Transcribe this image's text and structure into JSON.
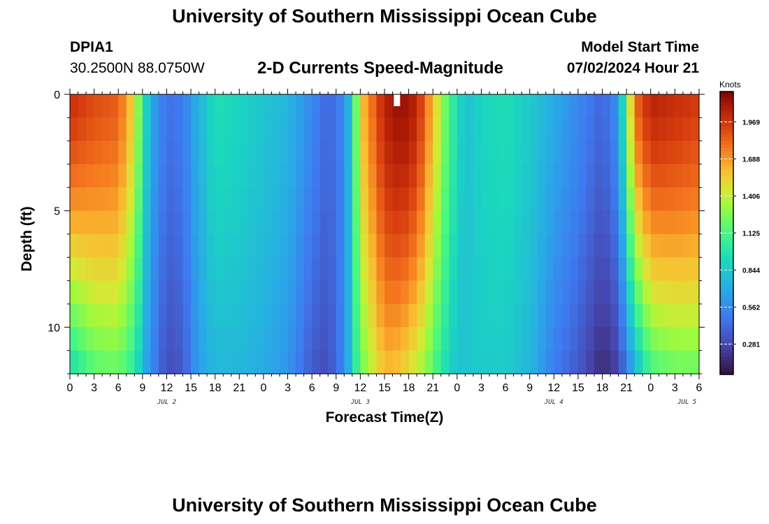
{
  "header": {
    "title": "University of Southern Mississippi Ocean Cube",
    "station_id": "DPIA1",
    "station_coords": "30.2500N  88.0750W",
    "subtitle": "2-D Currents Speed-Magnitude",
    "start_label": "Model Start Time",
    "start_value": "07/02/2024 Hour 21"
  },
  "footer": {
    "title": "University of Southern Mississippi Ocean Cube"
  },
  "chart_data": {
    "type": "heatmap",
    "title": "2-D Currents Speed-Magnitude",
    "xlabel": "Forecast Time(Z)",
    "ylabel": "Depth (ft)",
    "x_tick_labels": [
      "0",
      "3",
      "6",
      "9",
      "12",
      "15",
      "18",
      "21",
      "0",
      "3",
      "6",
      "9",
      "12",
      "15",
      "18",
      "21",
      "0",
      "3",
      "6",
      "9",
      "12",
      "15",
      "18",
      "21",
      "0",
      "3",
      "6"
    ],
    "date_labels": [
      {
        "label": "JUL 2",
        "tick_index": 4
      },
      {
        "label": "JUL 3",
        "tick_index": 12
      },
      {
        "label": "JUL 4",
        "tick_index": 20
      },
      {
        "label": "JUL 5",
        "tick_index": 25.5
      }
    ],
    "x_range_hours": [
      0,
      78
    ],
    "y_tick_labels": [
      "0",
      "5",
      "10"
    ],
    "y_range_ft": [
      0,
      12
    ],
    "colorbar": {
      "unit": "Knots",
      "ticks": [
        "1.969",
        "1.688",
        "1.406",
        "1.125",
        "0.844",
        "0.562",
        "0.281"
      ],
      "tick_values": [
        1.969,
        1.688,
        1.406,
        1.125,
        0.844,
        0.562,
        0.281
      ],
      "range": [
        0.05,
        2.2
      ]
    },
    "surface_speed_profile": [
      {
        "hour": 0,
        "value": 2.0
      },
      {
        "hour": 3,
        "value": 1.9
      },
      {
        "hour": 6,
        "value": 1.85
      },
      {
        "hour": 8,
        "value": 1.5
      },
      {
        "hour": 9,
        "value": 1.05
      },
      {
        "hour": 10,
        "value": 0.7
      },
      {
        "hour": 12,
        "value": 0.45
      },
      {
        "hour": 14,
        "value": 0.5
      },
      {
        "hour": 16,
        "value": 0.75
      },
      {
        "hour": 18,
        "value": 0.95
      },
      {
        "hour": 21,
        "value": 0.9
      },
      {
        "hour": 24,
        "value": 0.82
      },
      {
        "hour": 27,
        "value": 0.75
      },
      {
        "hour": 30,
        "value": 0.55
      },
      {
        "hour": 32,
        "value": 0.4
      },
      {
        "hour": 34,
        "value": 0.55
      },
      {
        "hour": 35,
        "value": 0.9
      },
      {
        "hour": 36,
        "value": 1.55
      },
      {
        "hour": 39,
        "value": 2.05
      },
      {
        "hour": 41,
        "value": 2.15
      },
      {
        "hour": 43,
        "value": 2.05
      },
      {
        "hour": 45,
        "value": 1.6
      },
      {
        "hour": 47,
        "value": 1.1
      },
      {
        "hour": 49,
        "value": 0.8
      },
      {
        "hour": 51,
        "value": 0.9
      },
      {
        "hour": 54,
        "value": 0.95
      },
      {
        "hour": 57,
        "value": 0.85
      },
      {
        "hour": 60,
        "value": 0.7
      },
      {
        "hour": 63,
        "value": 0.55
      },
      {
        "hour": 66,
        "value": 0.4
      },
      {
        "hour": 68,
        "value": 0.6
      },
      {
        "hour": 69,
        "value": 1.2
      },
      {
        "hour": 70,
        "value": 1.8
      },
      {
        "hour": 72,
        "value": 2.05
      },
      {
        "hour": 75,
        "value": 2.0
      },
      {
        "hour": 78,
        "value": 1.95
      }
    ],
    "bottom_speed_profile": [
      {
        "hour": 0,
        "value": 0.9
      },
      {
        "hour": 3,
        "value": 1.15
      },
      {
        "hour": 6,
        "value": 1.2
      },
      {
        "hour": 8,
        "value": 1.0
      },
      {
        "hour": 10,
        "value": 0.55
      },
      {
        "hour": 12,
        "value": 0.3
      },
      {
        "hour": 14,
        "value": 0.35
      },
      {
        "hour": 16,
        "value": 0.65
      },
      {
        "hour": 18,
        "value": 0.75
      },
      {
        "hour": 21,
        "value": 0.75
      },
      {
        "hour": 24,
        "value": 0.7
      },
      {
        "hour": 27,
        "value": 0.6
      },
      {
        "hour": 30,
        "value": 0.35
      },
      {
        "hour": 32,
        "value": 0.3
      },
      {
        "hour": 34,
        "value": 0.55
      },
      {
        "hour": 36,
        "value": 1.2
      },
      {
        "hour": 39,
        "value": 1.6
      },
      {
        "hour": 41,
        "value": 1.55
      },
      {
        "hour": 44,
        "value": 1.3
      },
      {
        "hour": 46,
        "value": 1.0
      },
      {
        "hour": 48,
        "value": 0.8
      },
      {
        "hour": 51,
        "value": 0.85
      },
      {
        "hour": 54,
        "value": 0.85
      },
      {
        "hour": 57,
        "value": 0.75
      },
      {
        "hour": 60,
        "value": 0.5
      },
      {
        "hour": 63,
        "value": 0.35
      },
      {
        "hour": 66,
        "value": 0.15
      },
      {
        "hour": 68,
        "value": 0.25
      },
      {
        "hour": 70,
        "value": 0.7
      },
      {
        "hour": 72,
        "value": 1.1
      },
      {
        "hour": 75,
        "value": 1.2
      },
      {
        "hour": 78,
        "value": 1.2
      }
    ],
    "missing_cell": {
      "hour": 40.5,
      "depth_ft": 0.3
    }
  }
}
